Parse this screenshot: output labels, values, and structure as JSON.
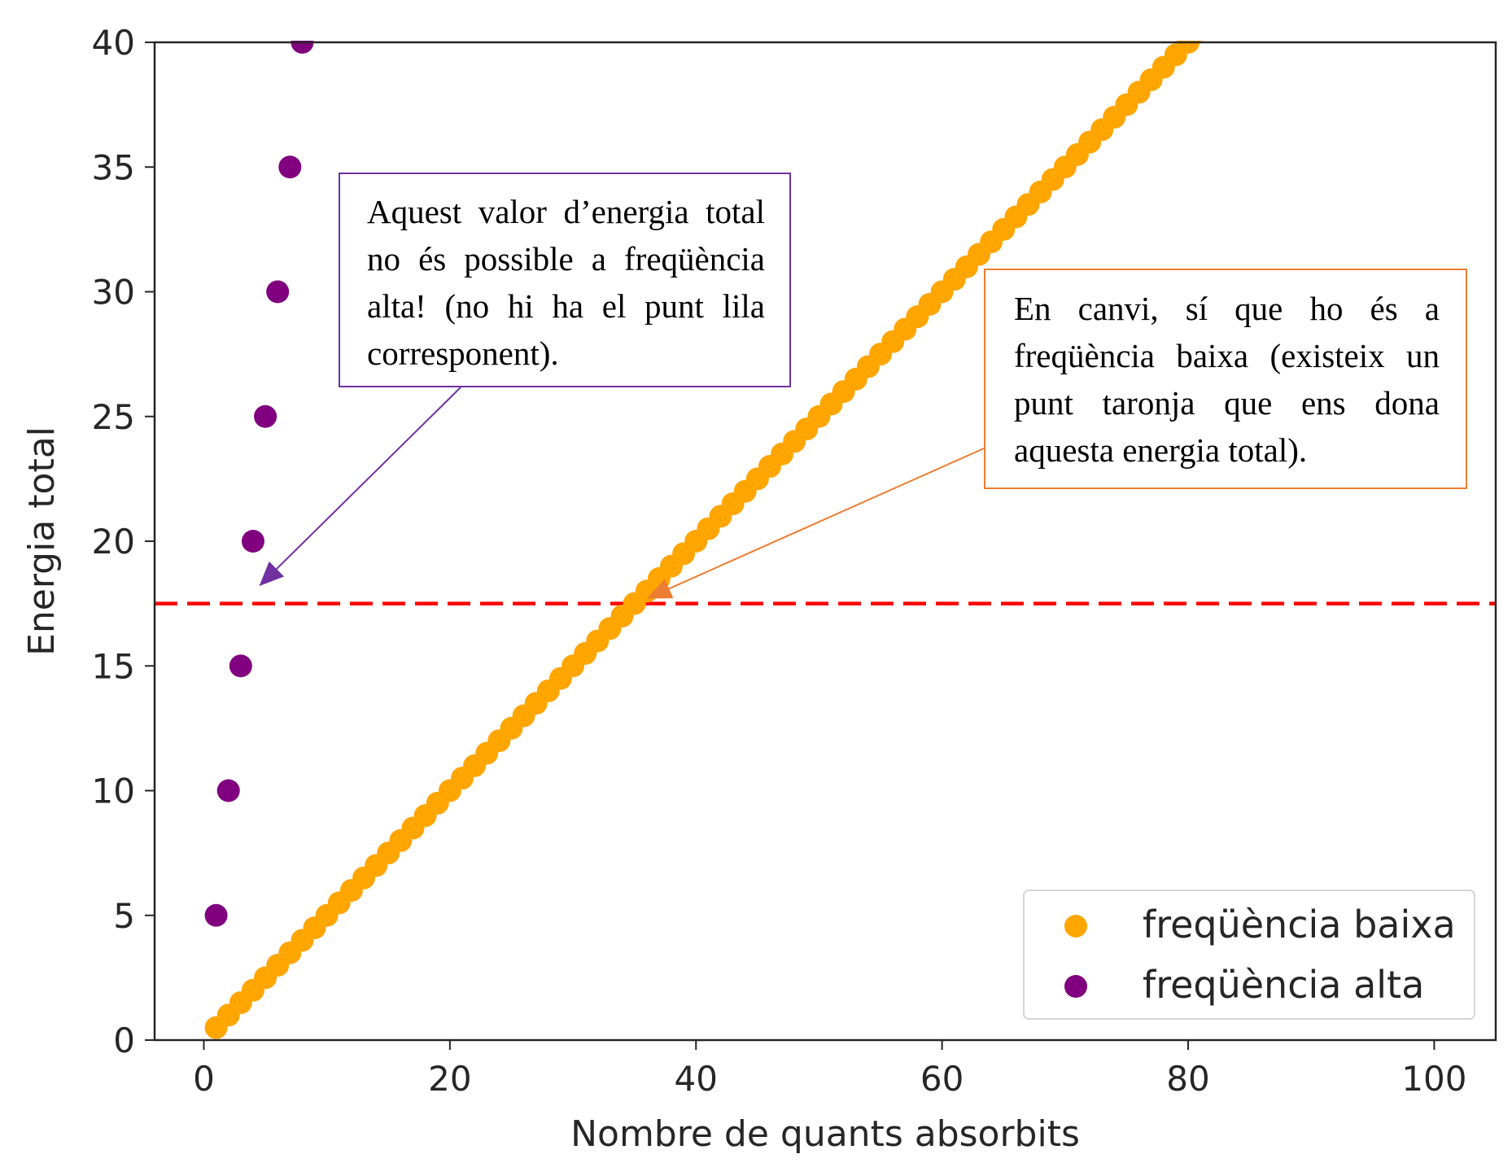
{
  "chart_data": {
    "type": "scatter",
    "xlabel": "Nombre de quants absorbits",
    "ylabel": "Energia total",
    "xlim": [
      -4,
      105
    ],
    "ylim": [
      0,
      40
    ],
    "xticks": [
      0,
      20,
      40,
      60,
      80,
      100
    ],
    "yticks": [
      0,
      5,
      10,
      15,
      20,
      25,
      30,
      35,
      40
    ],
    "series": [
      {
        "name": "freqüència baixa",
        "color": "#ffa500",
        "x_start": 1,
        "x_end": 100,
        "x_step": 1,
        "y_per_x": 0.5
      },
      {
        "name": "freqüència alta",
        "color": "#800080",
        "x": [
          1,
          2,
          3,
          4,
          5,
          6,
          7,
          8
        ],
        "y": [
          5,
          10,
          15,
          20,
          25,
          30,
          35,
          40
        ]
      }
    ],
    "reference_line": {
      "y": 17.5,
      "color": "#ff0000",
      "style": "dashed"
    },
    "legend": {
      "position": "bottom-right"
    },
    "annotations": [
      {
        "id": "high",
        "text": "Aquest valor d’energia total no és possible a freqüència alta! (no hi ha el punt lila corresponent).",
        "color": "#7030a0",
        "target": [
          4.5,
          18.2
        ]
      },
      {
        "id": "low",
        "text": "En canvi, sí que ho és a freqüència baixa (existeix un punt taronja que ens dona aquesta energia total).",
        "color": "#ed7d31",
        "target": [
          36,
          17.7
        ]
      }
    ]
  }
}
